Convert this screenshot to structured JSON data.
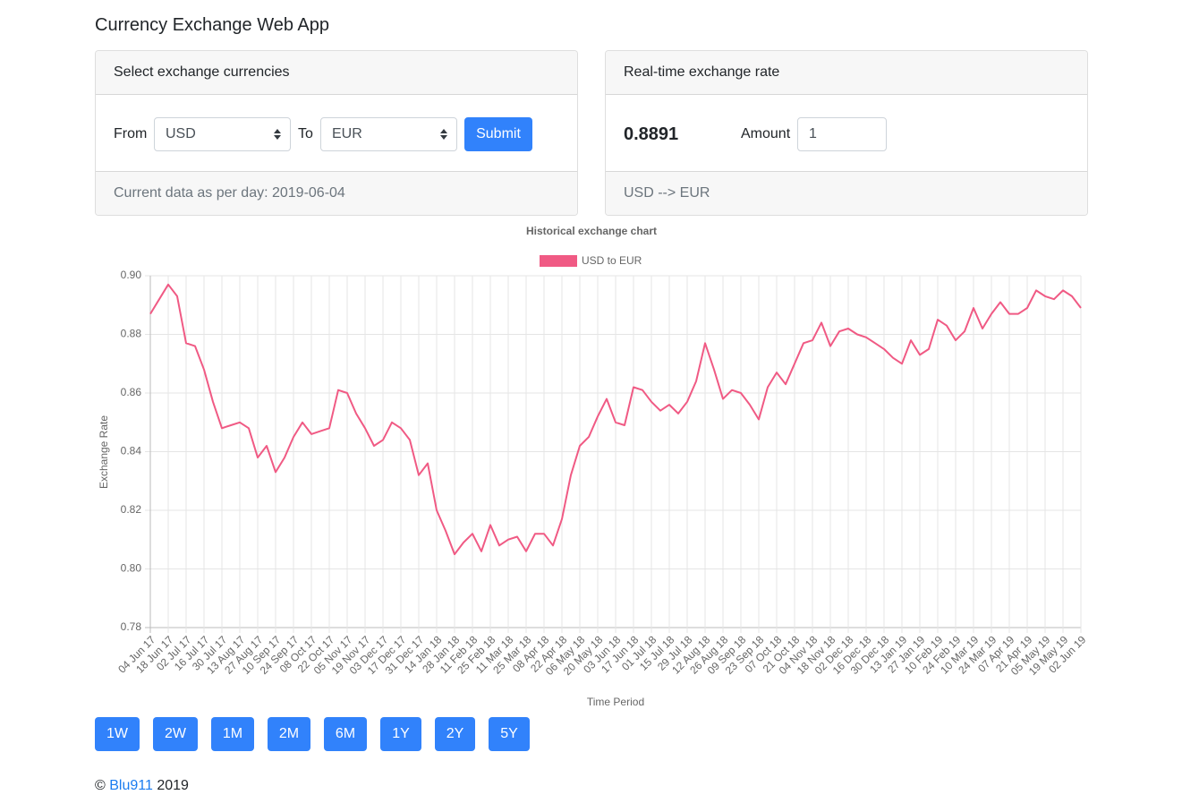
{
  "header": {
    "title": "Currency Exchange Web App"
  },
  "select_card": {
    "title": "Select exchange currencies",
    "from_label": "From",
    "from_value": "USD",
    "to_label": "To",
    "to_value": "EUR",
    "submit": "Submit",
    "footer": "Current data as per day: 2019-06-04"
  },
  "rate_card": {
    "title": "Real-time exchange rate",
    "rate": "0.8891",
    "amount_label": "Amount",
    "amount_value": "1",
    "footer": "USD --> EUR"
  },
  "chart_data": {
    "type": "line",
    "title": "Historical exchange chart",
    "x_label": "Time Period",
    "y_label": "Exchange Rate",
    "categories": [
      "04 Jun 17",
      null,
      "18 Jun 17",
      null,
      "02 Jul 17",
      null,
      "16 Jul 17",
      null,
      "30 Jul 17",
      null,
      "13 Aug 17",
      null,
      "27 Aug 17",
      null,
      "10 Sep 17",
      null,
      "24 Sep 17",
      null,
      "08 Oct 17",
      null,
      "22 Oct 17",
      null,
      "05 Nov 17",
      null,
      "19 Nov 17",
      null,
      "03 Dec 17",
      null,
      "17 Dec 17",
      null,
      "31 Dec 17",
      null,
      "14 Jan 18",
      null,
      "28 Jan 18",
      null,
      "11 Feb 18",
      null,
      "25 Feb 18",
      null,
      "11 Mar 18",
      null,
      "25 Mar 18",
      null,
      "08 Apr 18",
      null,
      "22 Apr 18",
      null,
      "06 May 18",
      null,
      "20 May 18",
      null,
      "03 Jun 18",
      null,
      "17 Jun 18",
      null,
      "01 Jul 18",
      null,
      "15 Jul 18",
      null,
      "29 Jul 18",
      null,
      "12 Aug 18",
      null,
      "26 Aug 18",
      null,
      "09 Sep 18",
      null,
      "23 Sep 18",
      null,
      "07 Oct 18",
      null,
      "21 Oct 18",
      null,
      "04 Nov 18",
      null,
      "18 Nov 18",
      null,
      "02 Dec 18",
      null,
      "16 Dec 18",
      null,
      "30 Dec 18",
      null,
      "13 Jan 19",
      null,
      "27 Jan 19",
      null,
      "10 Feb 19",
      null,
      "24 Feb 19",
      null,
      "10 Mar 19",
      null,
      "24 Mar 19",
      null,
      "07 Apr 19",
      null,
      "21 Apr 19",
      null,
      "05 May 19",
      null,
      "19 May 19",
      null,
      "02 Jun 19"
    ],
    "series": [
      {
        "name": "USD to EUR",
        "color": "#f05a84",
        "values": [
          0.887,
          0.892,
          0.897,
          0.893,
          0.877,
          0.876,
          0.868,
          0.857,
          0.848,
          0.849,
          0.85,
          0.848,
          0.838,
          0.842,
          0.833,
          0.838,
          0.845,
          0.85,
          0.846,
          0.847,
          0.848,
          0.861,
          0.86,
          0.853,
          0.848,
          0.842,
          0.844,
          0.85,
          0.848,
          0.844,
          0.832,
          0.836,
          0.82,
          0.813,
          0.805,
          0.809,
          0.812,
          0.806,
          0.815,
          0.808,
          0.81,
          0.811,
          0.806,
          0.812,
          0.812,
          0.808,
          0.817,
          0.832,
          0.842,
          0.845,
          0.852,
          0.858,
          0.85,
          0.849,
          0.862,
          0.861,
          0.857,
          0.854,
          0.856,
          0.853,
          0.857,
          0.864,
          0.877,
          0.868,
          0.858,
          0.861,
          0.86,
          0.856,
          0.851,
          0.862,
          0.867,
          0.863,
          0.87,
          0.877,
          0.878,
          0.884,
          0.876,
          0.881,
          0.882,
          0.88,
          0.879,
          0.877,
          0.875,
          0.872,
          0.87,
          0.878,
          0.873,
          0.875,
          0.885,
          0.883,
          0.878,
          0.881,
          0.889,
          0.882,
          0.887,
          0.891,
          0.887,
          0.887,
          0.889,
          0.895,
          0.893,
          0.892,
          0.895,
          0.893,
          0.889
        ]
      }
    ],
    "ylim": [
      0.78,
      0.9
    ],
    "yticks": [
      0.78,
      {
        "value": 0.8,
        "label": "0.80"
      },
      0.82,
      0.84,
      0.86,
      0.88,
      {
        "value": 0.9,
        "label": "0.90"
      }
    ],
    "grid": true,
    "legend": "top"
  },
  "period_buttons": [
    "1W",
    "2W",
    "1M",
    "2M",
    "6M",
    "1Y",
    "2Y",
    "5Y"
  ],
  "footer": {
    "symbol": "©",
    "link": "Blu911",
    "year": "2019"
  }
}
